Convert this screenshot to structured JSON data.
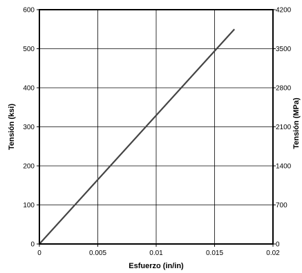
{
  "chart_data": {
    "type": "line",
    "xlabel": "Esfuerzo (in/in)",
    "ylabel": "Tensión (ksi)",
    "ylabel_right": "Tensión (MPa)",
    "xlim": [
      0,
      0.02
    ],
    "ylim": [
      0,
      600
    ],
    "ylim_right": [
      0,
      4200
    ],
    "x_ticks": [
      "0",
      "0.005",
      "0.01",
      "0.015",
      "0.02"
    ],
    "y_ticks": [
      "0",
      "100",
      "200",
      "300",
      "400",
      "500",
      "600"
    ],
    "y_ticks_right": [
      "0",
      "700",
      "1400",
      "2100",
      "2800",
      "3500",
      "4200"
    ],
    "grid": true,
    "series": [
      {
        "x": [
          0,
          0.0167
        ],
        "y": [
          0,
          550
        ]
      }
    ],
    "colors": {
      "line": "#444444",
      "frame": "#000000",
      "grid": "#000000"
    }
  }
}
